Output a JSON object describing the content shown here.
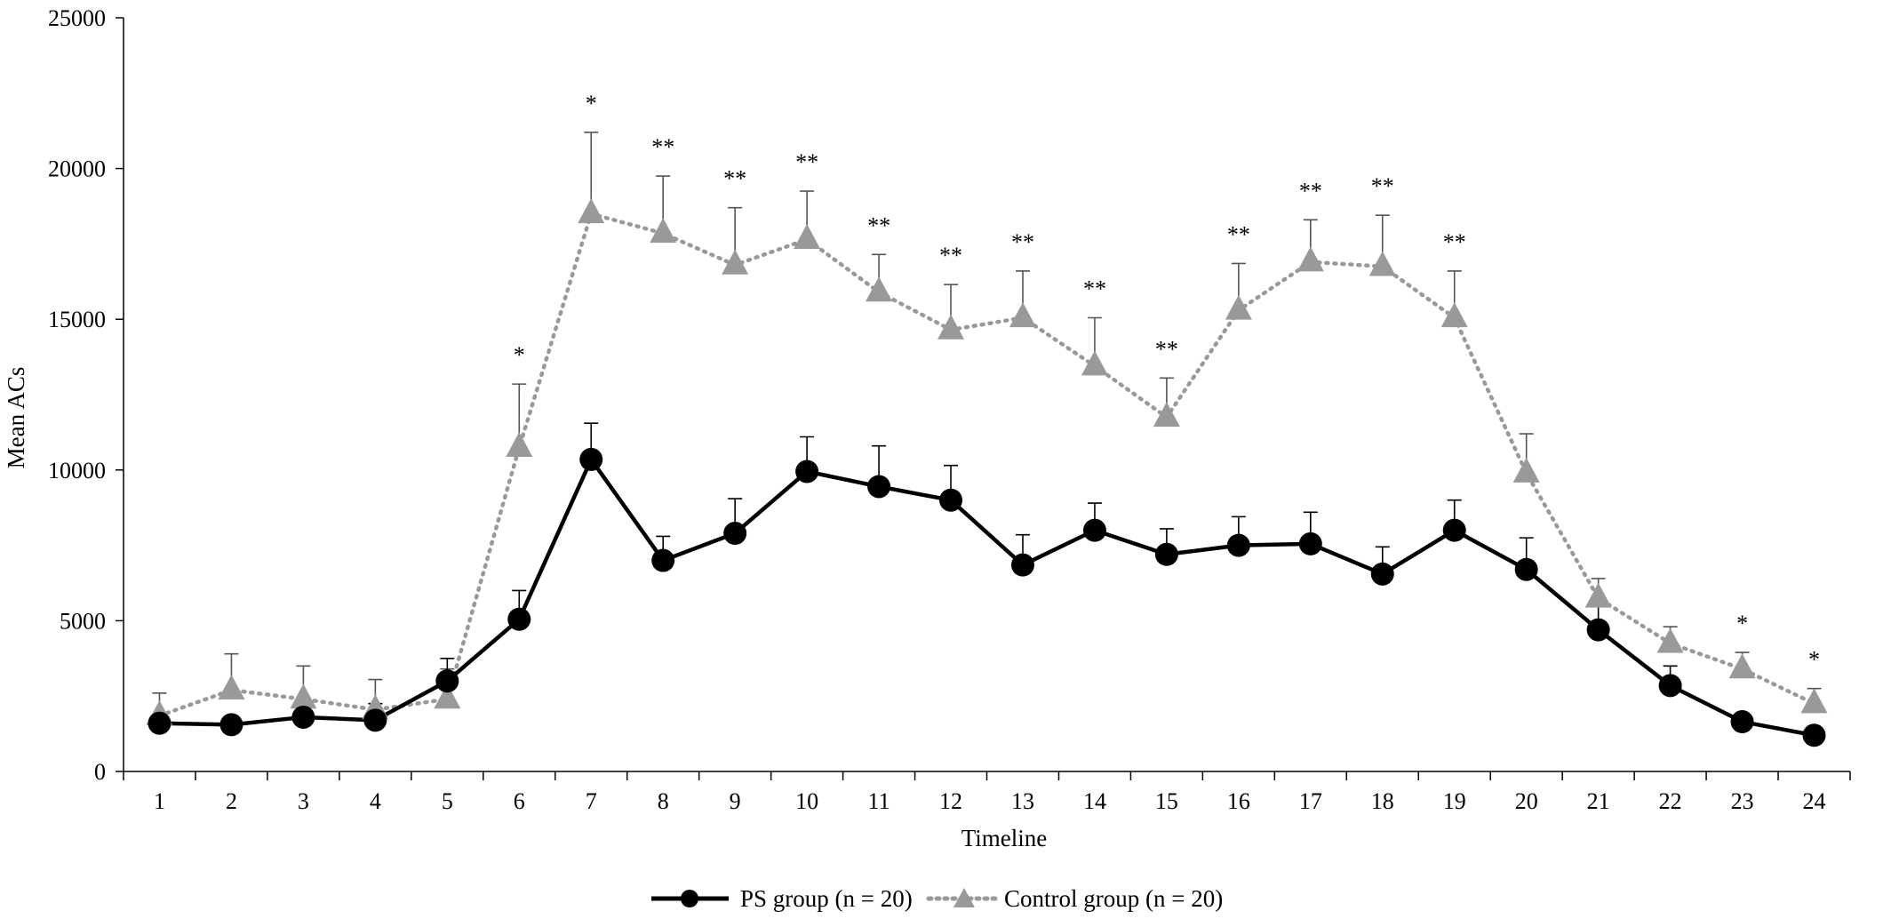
{
  "chart_data": {
    "type": "line",
    "title": "",
    "xlabel": "Timeline",
    "ylabel": "Mean ACs",
    "ylim": [
      0,
      25000
    ],
    "yticks": [
      0,
      5000,
      10000,
      15000,
      20000,
      25000
    ],
    "x": [
      1,
      2,
      3,
      4,
      5,
      6,
      7,
      8,
      9,
      10,
      11,
      12,
      13,
      14,
      15,
      16,
      17,
      18,
      19,
      20,
      21,
      22,
      23,
      24
    ],
    "grid": false,
    "legend_position": "bottom-center",
    "series": [
      {
        "name": "PS group (n = 20)",
        "color": "#000000",
        "marker": "circle",
        "line_style": "solid",
        "values": [
          1600,
          1550,
          1800,
          1700,
          3000,
          5050,
          10350,
          7000,
          7900,
          9950,
          9450,
          9000,
          6850,
          8000,
          7200,
          7500,
          7550,
          6550,
          8000,
          6700,
          4700,
          2850,
          1650,
          1200
        ],
        "error": [
          300,
          250,
          300,
          550,
          750,
          950,
          1200,
          800,
          1150,
          1150,
          1350,
          1150,
          1000,
          900,
          850,
          950,
          1050,
          900,
          1000,
          1050,
          850,
          650,
          200,
          150
        ]
      },
      {
        "name": "Control group (n = 20)",
        "color": "#999999",
        "marker": "triangle",
        "line_style": "dotted",
        "values": [
          1850,
          2700,
          2400,
          2050,
          2400,
          10750,
          18500,
          17850,
          16800,
          17650,
          15900,
          14650,
          15050,
          13450,
          11750,
          15300,
          16900,
          16750,
          15050,
          9900,
          5750,
          4250,
          3400,
          2250
        ],
        "error": [
          750,
          1200,
          1100,
          1000,
          1000,
          2100,
          2700,
          1900,
          1900,
          1600,
          1250,
          1500,
          1550,
          1600,
          1300,
          1550,
          1400,
          1700,
          1550,
          1300,
          650,
          550,
          550,
          500
        ]
      }
    ],
    "annotations": [
      "",
      "",
      "",
      "",
      "",
      "*",
      "*",
      "**",
      "**",
      "**",
      "**",
      "**",
      "**",
      "**",
      "**",
      "**",
      "**",
      "**",
      "**",
      "",
      "",
      "",
      "*",
      "*"
    ]
  }
}
